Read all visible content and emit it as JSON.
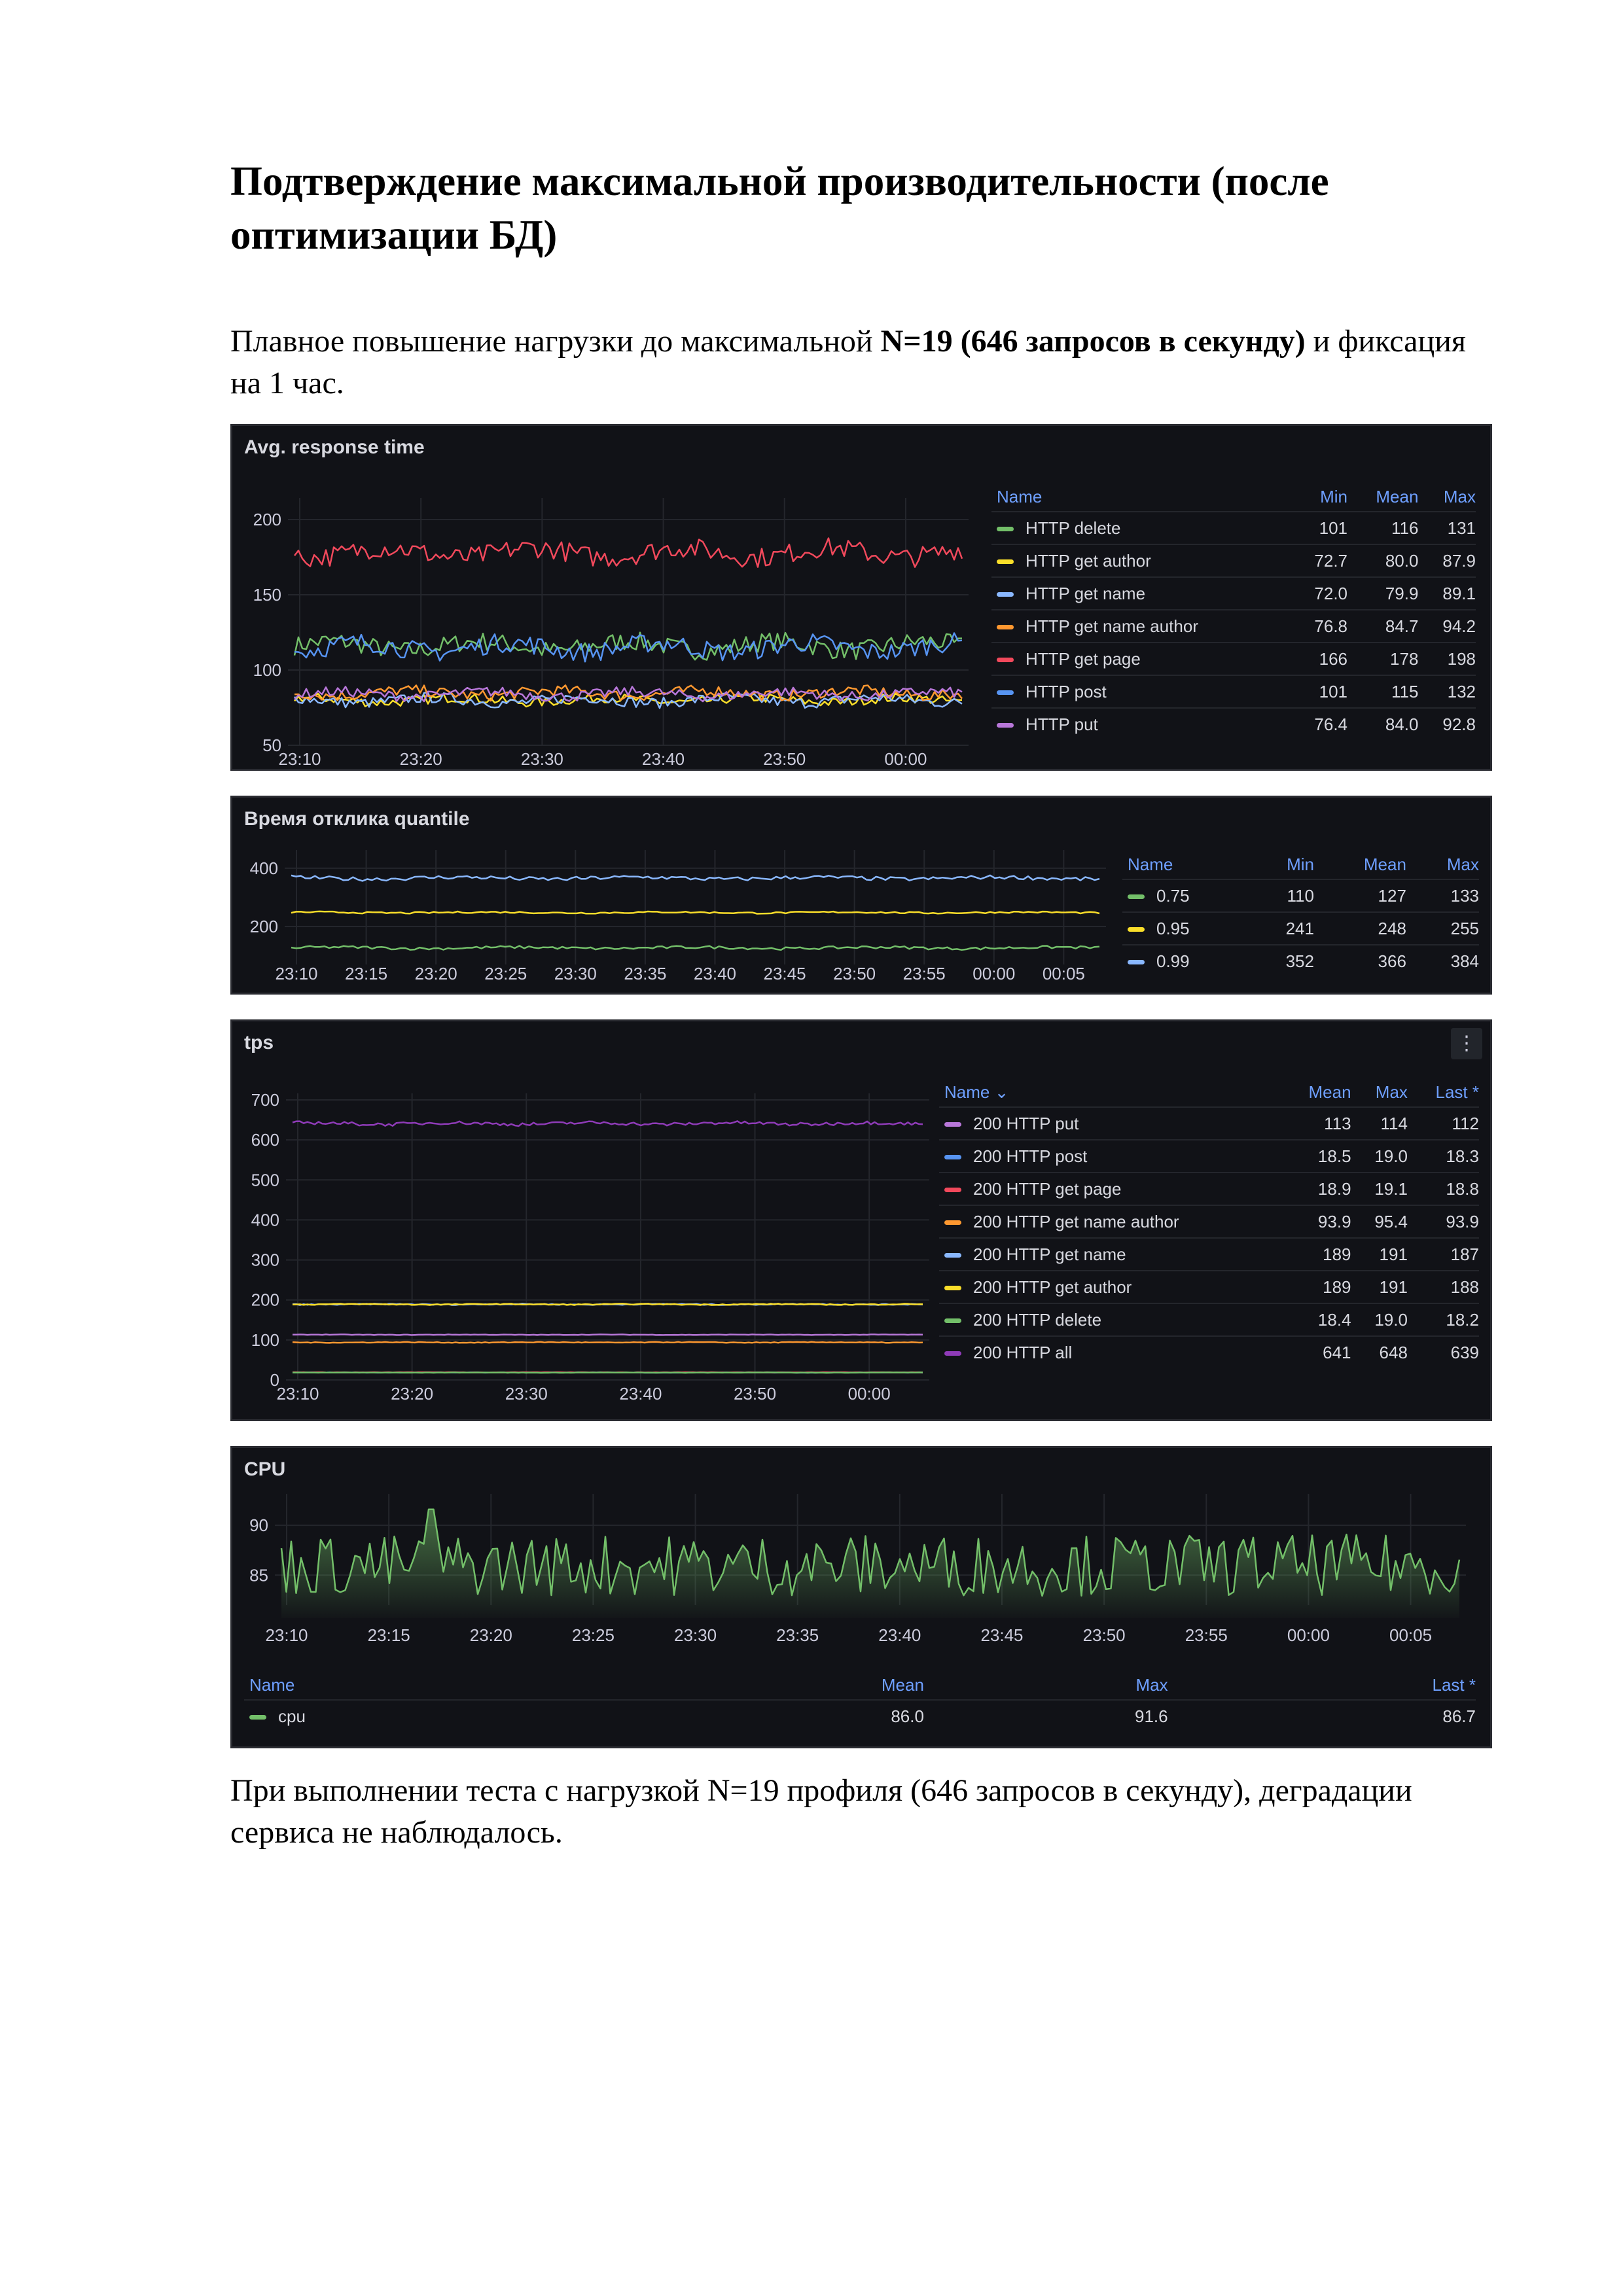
{
  "heading": "Подтверждение максимальной производительности (после оптимизации БД)",
  "intro": {
    "pre": "Плавное повышение нагрузки до максимальной ",
    "bold": "N=19 (646 запросов в секунду)",
    "post": " и фиксация на 1 час."
  },
  "conclusion": "При выполнении теста с нагрузкой N=19 профиля (646 запросов в секунду), деградации сервиса не наблюдалось.",
  "colors": {
    "green": "#73bf69",
    "yellow": "#fade2a",
    "lightblue": "#8ab8ff",
    "orange": "#ff9830",
    "red": "#f2495c",
    "blue": "#5794f2",
    "purple": "#b877d9",
    "violet": "#8f3bb8"
  },
  "panels": {
    "response": {
      "title": "Avg. response time",
      "legend": {
        "headers": [
          "Name",
          "Min",
          "Mean",
          "Max"
        ],
        "rows": [
          {
            "name": "HTTP delete",
            "color": "#73bf69",
            "v1": "101",
            "v2": "116",
            "v3": "131"
          },
          {
            "name": "HTTP get author",
            "color": "#fade2a",
            "v1": "72.7",
            "v2": "80.0",
            "v3": "87.9"
          },
          {
            "name": "HTTP get name",
            "color": "#8ab8ff",
            "v1": "72.0",
            "v2": "79.9",
            "v3": "89.1"
          },
          {
            "name": "HTTP get name author",
            "color": "#ff9830",
            "v1": "76.8",
            "v2": "84.7",
            "v3": "94.2"
          },
          {
            "name": "HTTP get page",
            "color": "#f2495c",
            "v1": "166",
            "v2": "178",
            "v3": "198"
          },
          {
            "name": "HTTP post",
            "color": "#5794f2",
            "v1": "101",
            "v2": "115",
            "v3": "132"
          },
          {
            "name": "HTTP put",
            "color": "#b877d9",
            "v1": "76.4",
            "v2": "84.0",
            "v3": "92.8"
          }
        ]
      }
    },
    "quantile": {
      "title": "Время отклика quantile",
      "legend": {
        "headers": [
          "Name",
          "Min",
          "Mean",
          "Max"
        ],
        "rows": [
          {
            "name": "0.75",
            "color": "#73bf69",
            "v1": "110",
            "v2": "127",
            "v3": "133"
          },
          {
            "name": "0.95",
            "color": "#fade2a",
            "v1": "241",
            "v2": "248",
            "v3": "255"
          },
          {
            "name": "0.99",
            "color": "#8ab8ff",
            "v1": "352",
            "v2": "366",
            "v3": "384"
          }
        ]
      }
    },
    "tps": {
      "title": "tps",
      "menu_icon": "⋮",
      "legend": {
        "headers": [
          "Name ⌄",
          "Mean",
          "Max",
          "Last *"
        ],
        "rows": [
          {
            "name": "200 HTTP put",
            "color": "#b877d9",
            "v1": "113",
            "v2": "114",
            "v3": "112"
          },
          {
            "name": "200 HTTP post",
            "color": "#5794f2",
            "v1": "18.5",
            "v2": "19.0",
            "v3": "18.3"
          },
          {
            "name": "200 HTTP get page",
            "color": "#f2495c",
            "v1": "18.9",
            "v2": "19.1",
            "v3": "18.8"
          },
          {
            "name": "200 HTTP get name author",
            "color": "#ff9830",
            "v1": "93.9",
            "v2": "95.4",
            "v3": "93.9"
          },
          {
            "name": "200 HTTP get name",
            "color": "#8ab8ff",
            "v1": "189",
            "v2": "191",
            "v3": "187"
          },
          {
            "name": "200 HTTP get author",
            "color": "#fade2a",
            "v1": "189",
            "v2": "191",
            "v3": "188"
          },
          {
            "name": "200 HTTP delete",
            "color": "#73bf69",
            "v1": "18.4",
            "v2": "19.0",
            "v3": "18.2"
          },
          {
            "name": "200 HTTP all",
            "color": "#8f3bb8",
            "v1": "641",
            "v2": "648",
            "v3": "639"
          }
        ]
      }
    },
    "cpu": {
      "title": "CPU",
      "legend": {
        "headers": [
          "Name",
          "Mean",
          "Max",
          "Last *"
        ],
        "rows": [
          {
            "name": "cpu",
            "color": "#73bf69",
            "v1": "86.0",
            "v2": "91.6",
            "v3": "86.7"
          }
        ]
      }
    }
  },
  "chart_data": [
    {
      "type": "line",
      "title": "Avg. response time",
      "x_ticks": [
        "23:10",
        "23:20",
        "23:30",
        "23:40",
        "23:50",
        "00:00"
      ],
      "ylim": [
        50,
        210
      ],
      "y_ticks": [
        50,
        100,
        150,
        200
      ],
      "series": [
        {
          "name": "HTTP delete",
          "color": "#73bf69",
          "min": 101,
          "mean": 116,
          "max": 131
        },
        {
          "name": "HTTP get author",
          "color": "#fade2a",
          "min": 72.7,
          "mean": 80.0,
          "max": 87.9
        },
        {
          "name": "HTTP get name",
          "color": "#8ab8ff",
          "min": 72.0,
          "mean": 79.9,
          "max": 89.1
        },
        {
          "name": "HTTP get name author",
          "color": "#ff9830",
          "min": 76.8,
          "mean": 84.7,
          "max": 94.2
        },
        {
          "name": "HTTP get page",
          "color": "#f2495c",
          "min": 166,
          "mean": 178,
          "max": 198
        },
        {
          "name": "HTTP post",
          "color": "#5794f2",
          "min": 101,
          "mean": 115,
          "max": 132
        },
        {
          "name": "HTTP put",
          "color": "#b877d9",
          "min": 76.4,
          "mean": 84.0,
          "max": 92.8
        }
      ]
    },
    {
      "type": "line",
      "title": "Время отклика quantile",
      "x_ticks": [
        "23:10",
        "23:15",
        "23:20",
        "23:25",
        "23:30",
        "23:35",
        "23:40",
        "23:45",
        "23:50",
        "23:55",
        "00:00",
        "00:05"
      ],
      "ylim": [
        70,
        440
      ],
      "y_ticks": [
        200,
        400
      ],
      "series": [
        {
          "name": "0.75",
          "color": "#73bf69",
          "min": 110,
          "mean": 127,
          "max": 133
        },
        {
          "name": "0.95",
          "color": "#fade2a",
          "min": 241,
          "mean": 248,
          "max": 255
        },
        {
          "name": "0.99",
          "color": "#8ab8ff",
          "min": 352,
          "mean": 366,
          "max": 384
        }
      ]
    },
    {
      "type": "line",
      "title": "tps",
      "x_ticks": [
        "23:10",
        "23:20",
        "23:30",
        "23:40",
        "23:50",
        "00:00"
      ],
      "ylim": [
        0,
        700
      ],
      "y_ticks": [
        0,
        100,
        200,
        300,
        400,
        500,
        600,
        700
      ],
      "series": [
        {
          "name": "200 HTTP put",
          "color": "#b877d9",
          "mean": 113,
          "max": 114,
          "last": 112
        },
        {
          "name": "200 HTTP post",
          "color": "#5794f2",
          "mean": 18.5,
          "max": 19.0,
          "last": 18.3
        },
        {
          "name": "200 HTTP get page",
          "color": "#f2495c",
          "mean": 18.9,
          "max": 19.1,
          "last": 18.8
        },
        {
          "name": "200 HTTP get name author",
          "color": "#ff9830",
          "mean": 93.9,
          "max": 95.4,
          "last": 93.9
        },
        {
          "name": "200 HTTP get name",
          "color": "#8ab8ff",
          "mean": 189,
          "max": 191,
          "last": 187
        },
        {
          "name": "200 HTTP get author",
          "color": "#fade2a",
          "mean": 189,
          "max": 191,
          "last": 188
        },
        {
          "name": "200 HTTP delete",
          "color": "#73bf69",
          "mean": 18.4,
          "max": 19.0,
          "last": 18.2
        },
        {
          "name": "200 HTTP all",
          "color": "#8f3bb8",
          "mean": 641,
          "max": 648,
          "last": 639
        }
      ]
    },
    {
      "type": "area",
      "title": "CPU",
      "x_ticks": [
        "23:10",
        "23:15",
        "23:20",
        "23:25",
        "23:30",
        "23:35",
        "23:40",
        "23:45",
        "23:50",
        "23:55",
        "00:00",
        "00:05"
      ],
      "ylim": [
        82,
        92.5
      ],
      "y_ticks": [
        85,
        90
      ],
      "series": [
        {
          "name": "cpu",
          "color": "#73bf69",
          "mean": 86.0,
          "max": 91.6,
          "last": 86.7,
          "spike": {
            "x": "23:17",
            "y": 91.6
          }
        }
      ]
    }
  ]
}
